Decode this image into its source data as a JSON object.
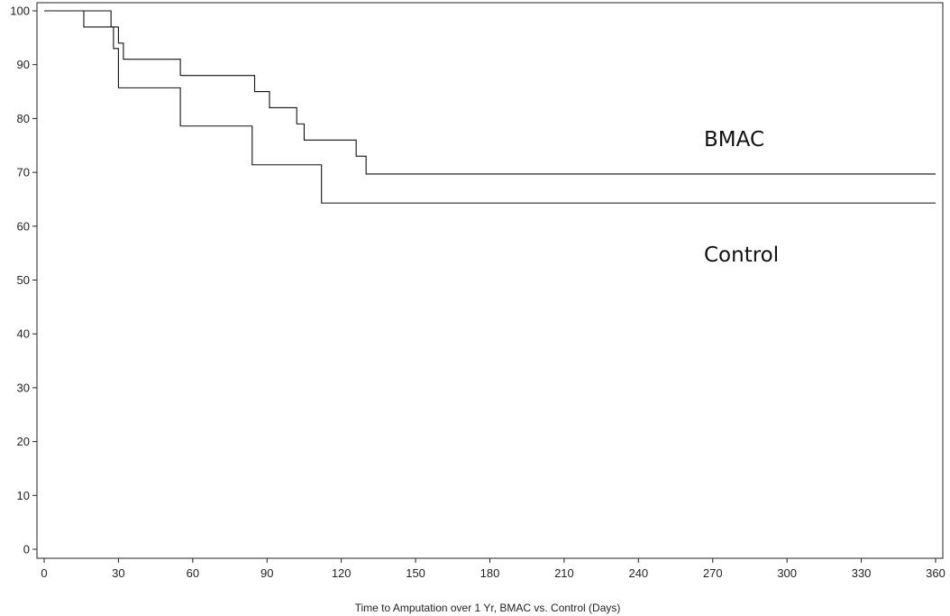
{
  "chart_data": {
    "type": "line",
    "step": true,
    "xlabel": "Time to Amputation over 1 Yr, BMAC vs. Control (Days)",
    "ylabel": "",
    "xlim": [
      0,
      360
    ],
    "ylim": [
      0,
      100
    ],
    "x_ticks": [
      "0",
      "30",
      "60",
      "90",
      "120",
      "150",
      "180",
      "210",
      "240",
      "270",
      "300",
      "330",
      "360"
    ],
    "y_ticks": [
      "0",
      "10",
      "20",
      "30",
      "40",
      "50",
      "60",
      "70",
      "80",
      "90",
      "100"
    ],
    "grid": false,
    "series": [
      {
        "name": "BMAC",
        "x": [
          0,
          27,
          30,
          32,
          36,
          55,
          85,
          91,
          102,
          105,
          126,
          130,
          360
        ],
        "y": [
          100,
          97,
          94,
          91,
          91,
          88,
          85,
          82,
          79,
          76,
          73,
          69.7,
          69.7
        ]
      },
      {
        "name": "Control",
        "x": [
          0,
          16,
          28,
          30,
          55,
          84,
          112,
          360
        ],
        "y": [
          100,
          97,
          93,
          85.7,
          78.6,
          71.4,
          64.3,
          64.3
        ]
      }
    ]
  }
}
